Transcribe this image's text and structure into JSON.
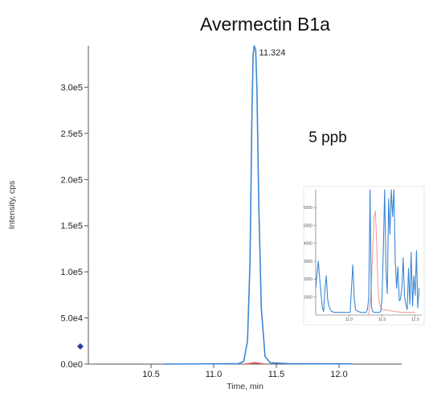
{
  "chart_data": [
    {
      "type": "line",
      "title": "Avermectin  B1a",
      "annotation": "5 ppb",
      "peak_label": "11.324",
      "xlabel": "Time, min",
      "ylabel": "Intensity, cps",
      "xlim": [
        10.0,
        12.5
      ],
      "ylim": [
        0,
        345000
      ],
      "x_ticks": [
        10.5,
        11.0,
        11.5,
        12.0
      ],
      "x_tick_labels": [
        "10.5",
        "11.0",
        "11.5",
        "12.0"
      ],
      "y_ticks": [
        0,
        50000,
        100000,
        150000,
        200000,
        250000,
        300000
      ],
      "y_tick_labels": [
        "0.0e0",
        "5.0e4",
        "1.0e5",
        "1.5e5",
        "2.0e5",
        "2.5e5",
        "3.0e5"
      ],
      "grid": false,
      "series": [
        {
          "color": "#3b86d6",
          "x": [
            10.6,
            11.0,
            11.2,
            11.24,
            11.27,
            11.29,
            11.305,
            11.315,
            11.324,
            11.335,
            11.345,
            11.36,
            11.38,
            11.41,
            11.45,
            11.6,
            12.1
          ],
          "y": [
            0,
            300,
            500,
            3000,
            25000,
            110000,
            270000,
            335000,
            345000,
            340000,
            300000,
            170000,
            60000,
            8000,
            1500,
            400,
            300
          ]
        },
        {
          "color": "#e05050",
          "x": [
            11.25,
            11.3,
            11.33,
            11.36,
            11.4
          ],
          "y": [
            0,
            800,
            1500,
            800,
            0
          ]
        }
      ]
    },
    {
      "type": "line",
      "inset": true,
      "xlim": [
        10.5,
        12.1
      ],
      "ylim": [
        0,
        7000
      ],
      "x_ticks": [
        11.0,
        11.5,
        12.0
      ],
      "x_tick_labels": [
        "11.0",
        "11.5",
        "12.0"
      ],
      "y_ticks": [
        1000,
        2000,
        3000,
        4000,
        5000,
        6000
      ],
      "y_tick_labels": [
        "1000",
        "2000",
        "3000",
        "4000",
        "5000",
        "6000"
      ],
      "series": [
        {
          "color": "#3b86d6",
          "x": [
            10.5,
            10.52,
            10.54,
            10.56,
            10.58,
            10.6,
            10.62,
            10.64,
            10.66,
            10.68,
            10.7,
            10.72,
            10.74,
            10.78,
            10.82,
            10.86,
            10.9,
            10.94,
            10.98,
            11.0,
            11.02,
            11.04,
            11.06,
            11.08,
            11.1,
            11.14,
            11.18,
            11.22,
            11.26,
            11.28,
            11.3,
            11.32,
            11.34,
            11.36,
            11.38,
            11.4,
            11.42,
            11.44,
            11.46,
            11.48,
            11.5,
            11.52,
            11.54,
            11.56,
            11.58,
            11.6,
            11.62,
            11.64,
            11.66,
            11.68,
            11.7,
            11.72,
            11.74,
            11.76,
            11.78,
            11.8,
            11.82,
            11.84,
            11.86,
            11.88,
            11.9,
            11.92,
            11.94,
            11.96,
            11.98,
            12.0,
            12.02,
            12.04,
            12.06
          ],
          "y": [
            1500,
            2300,
            3000,
            2000,
            1200,
            400,
            200,
            1500,
            2200,
            900,
            500,
            300,
            200,
            150,
            150,
            150,
            150,
            150,
            150,
            150,
            150,
            1500,
            2800,
            1000,
            300,
            200,
            150,
            150,
            150,
            300,
            900,
            7000,
            500,
            200,
            150,
            150,
            150,
            150,
            150,
            200,
            900,
            3500,
            7000,
            2500,
            1200,
            6500,
            4500,
            7000,
            5500,
            7000,
            3000,
            1500,
            2700,
            800,
            900,
            1600,
            3200,
            1000,
            600,
            300,
            2600,
            600,
            3500,
            500,
            2200,
            1100,
            3600,
            400,
            1500
          ]
        },
        {
          "color": "#f0a0a0",
          "x": [
            11.3,
            11.33,
            11.36,
            11.38,
            11.4,
            11.42,
            11.44,
            11.46,
            11.5,
            11.54,
            11.6,
            11.7,
            11.8,
            11.9,
            12.0
          ],
          "y": [
            0,
            1000,
            3500,
            5500,
            5800,
            4000,
            1500,
            600,
            300,
            300,
            250,
            200,
            150,
            150,
            150
          ]
        }
      ]
    }
  ]
}
